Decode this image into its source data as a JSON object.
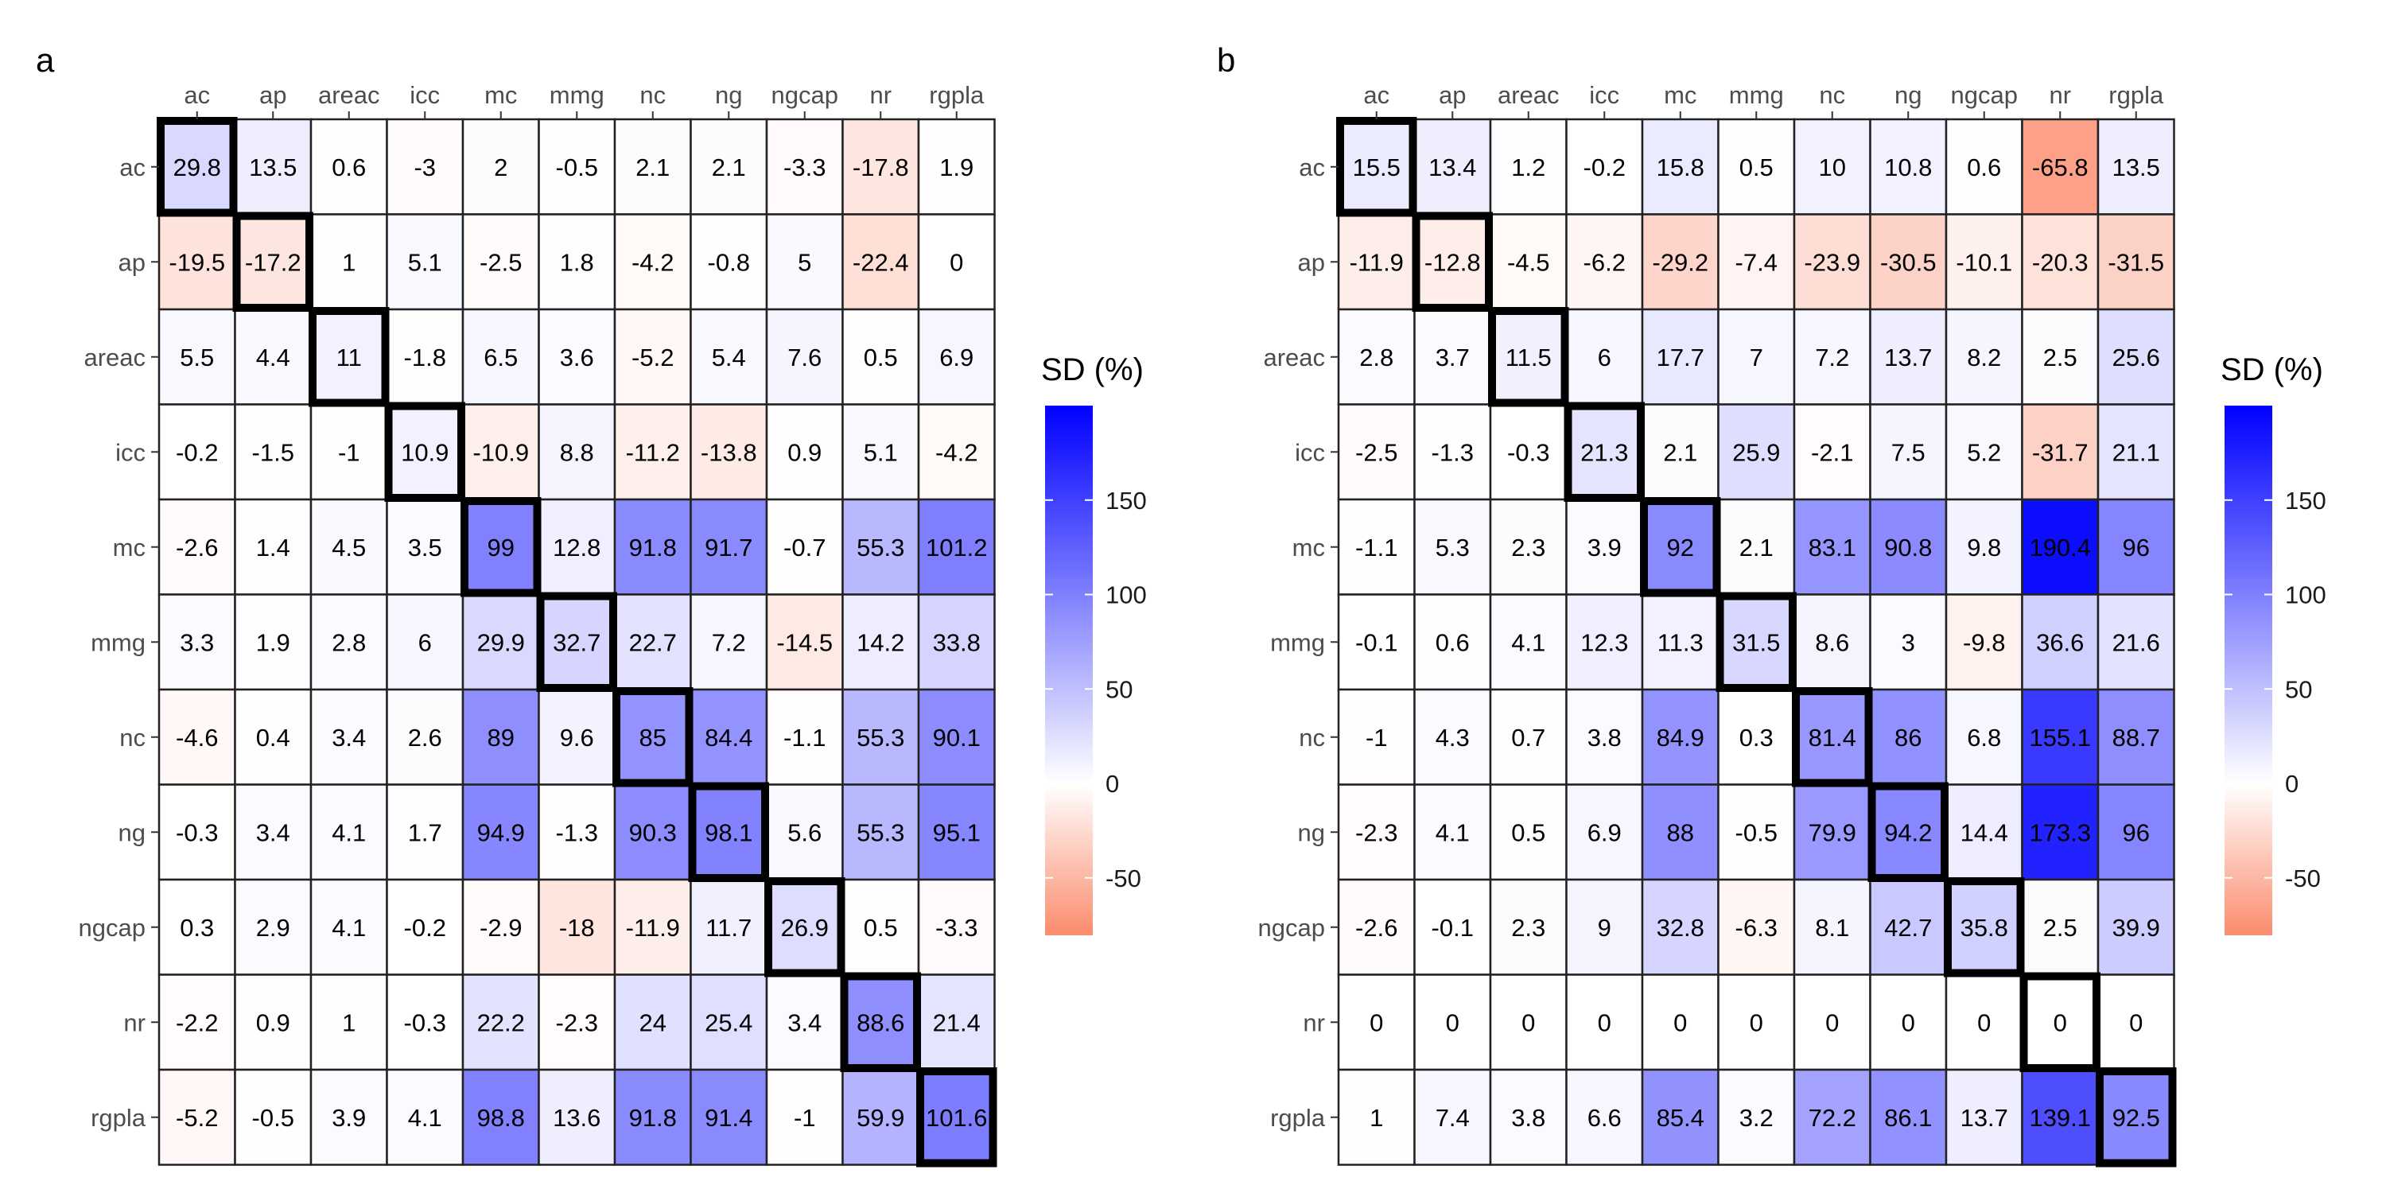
{
  "chart_data": [
    {
      "type": "heatmap",
      "panel_label": "a",
      "rows": [
        "ac",
        "ap",
        "areac",
        "icc",
        "mc",
        "mmg",
        "nc",
        "ng",
        "ngcap",
        "nr",
        "rgpla"
      ],
      "columns": [
        "ac",
        "ap",
        "areac",
        "icc",
        "mc",
        "mmg",
        "nc",
        "ng",
        "ngcap",
        "nr",
        "rgpla"
      ],
      "values": [
        [
          "29.8",
          "13.5",
          "0.6",
          "-3",
          "2",
          "-0.5",
          "2.1",
          "2.1",
          "-3.3",
          "-17.8",
          "1.9"
        ],
        [
          "-19.5",
          "-17.2",
          "1",
          "5.1",
          "-2.5",
          "1.8",
          "-4.2",
          "-0.8",
          "5",
          "-22.4",
          "0"
        ],
        [
          "5.5",
          "4.4",
          "11",
          "-1.8",
          "6.5",
          "3.6",
          "-5.2",
          "5.4",
          "7.6",
          "0.5",
          "6.9"
        ],
        [
          "-0.2",
          "-1.5",
          "-1",
          "10.9",
          "-10.9",
          "8.8",
          "-11.2",
          "-13.8",
          "0.9",
          "5.1",
          "-4.2"
        ],
        [
          "-2.6",
          "1.4",
          "4.5",
          "3.5",
          "99",
          "12.8",
          "91.8",
          "91.7",
          "-0.7",
          "55.3",
          "101.2"
        ],
        [
          "3.3",
          "1.9",
          "2.8",
          "6",
          "29.9",
          "32.7",
          "22.7",
          "7.2",
          "-14.5",
          "14.2",
          "33.8"
        ],
        [
          "-4.6",
          "0.4",
          "3.4",
          "2.6",
          "89",
          "9.6",
          "85",
          "84.4",
          "-1.1",
          "55.3",
          "90.1"
        ],
        [
          "-0.3",
          "3.4",
          "4.1",
          "1.7",
          "94.9",
          "-1.3",
          "90.3",
          "98.1",
          "5.6",
          "55.3",
          "95.1"
        ],
        [
          "0.3",
          "2.9",
          "4.1",
          "-0.2",
          "-2.9",
          "-18",
          "-11.9",
          "11.7",
          "26.9",
          "0.5",
          "-3.3"
        ],
        [
          "-2.2",
          "0.9",
          "1",
          "-0.3",
          "22.2",
          "-2.3",
          "24",
          "25.4",
          "3.4",
          "88.6",
          "21.4"
        ],
        [
          "-5.2",
          "-0.5",
          "3.9",
          "4.1",
          "98.8",
          "13.6",
          "91.8",
          "91.4",
          "-1",
          "59.9",
          "101.6"
        ]
      ],
      "highlight": "diagonal",
      "legend": {
        "title": "SD (%)",
        "ticks": [
          "150",
          "100",
          "50",
          "0",
          "-50"
        ],
        "tick_values": [
          150,
          100,
          50,
          0,
          -50
        ],
        "range": [
          -80,
          200
        ]
      },
      "colors": {
        "low": "#fb8c6e",
        "mid": "#ffffff",
        "high": "#0000ff"
      }
    },
    {
      "type": "heatmap",
      "panel_label": "b",
      "rows": [
        "ac",
        "ap",
        "areac",
        "icc",
        "mc",
        "mmg",
        "nc",
        "ng",
        "ngcap",
        "nr",
        "rgpla"
      ],
      "columns": [
        "ac",
        "ap",
        "areac",
        "icc",
        "mc",
        "mmg",
        "nc",
        "ng",
        "ngcap",
        "nr",
        "rgpla"
      ],
      "values": [
        [
          "15.5",
          "13.4",
          "1.2",
          "-0.2",
          "15.8",
          "0.5",
          "10",
          "10.8",
          "0.6",
          "-65.8",
          "13.5"
        ],
        [
          "-11.9",
          "-12.8",
          "-4.5",
          "-6.2",
          "-29.2",
          "-7.4",
          "-23.9",
          "-30.5",
          "-10.1",
          "-20.3",
          "-31.5"
        ],
        [
          "2.8",
          "3.7",
          "11.5",
          "6",
          "17.7",
          "7",
          "7.2",
          "13.7",
          "8.2",
          "2.5",
          "25.6"
        ],
        [
          "-2.5",
          "-1.3",
          "-0.3",
          "21.3",
          "2.1",
          "25.9",
          "-2.1",
          "7.5",
          "5.2",
          "-31.7",
          "21.1"
        ],
        [
          "-1.1",
          "5.3",
          "2.3",
          "3.9",
          "92",
          "2.1",
          "83.1",
          "90.8",
          "9.8",
          "190.4",
          "96"
        ],
        [
          "-0.1",
          "0.6",
          "4.1",
          "12.3",
          "11.3",
          "31.5",
          "8.6",
          "3",
          "-9.8",
          "36.6",
          "21.6"
        ],
        [
          "-1",
          "4.3",
          "0.7",
          "3.8",
          "84.9",
          "0.3",
          "81.4",
          "86",
          "6.8",
          "155.1",
          "88.7"
        ],
        [
          "-2.3",
          "4.1",
          "0.5",
          "6.9",
          "88",
          "-0.5",
          "79.9",
          "94.2",
          "14.4",
          "173.3",
          "96"
        ],
        [
          "-2.6",
          "-0.1",
          "2.3",
          "9",
          "32.8",
          "-6.3",
          "8.1",
          "42.7",
          "35.8",
          "2.5",
          "39.9"
        ],
        [
          "0",
          "0",
          "0",
          "0",
          "0",
          "0",
          "0",
          "0",
          "0",
          "0",
          "0"
        ],
        [
          "1",
          "7.4",
          "3.8",
          "6.6",
          "85.4",
          "3.2",
          "72.2",
          "86.1",
          "13.7",
          "139.1",
          "92.5"
        ]
      ],
      "highlight": "diagonal",
      "legend": {
        "title": "SD (%)",
        "ticks": [
          "150",
          "100",
          "50",
          "0",
          "-50"
        ],
        "tick_values": [
          150,
          100,
          50,
          0,
          -50
        ],
        "range": [
          -80,
          200
        ]
      },
      "colors": {
        "low": "#fb8c6e",
        "mid": "#ffffff",
        "high": "#0000ff"
      }
    }
  ]
}
